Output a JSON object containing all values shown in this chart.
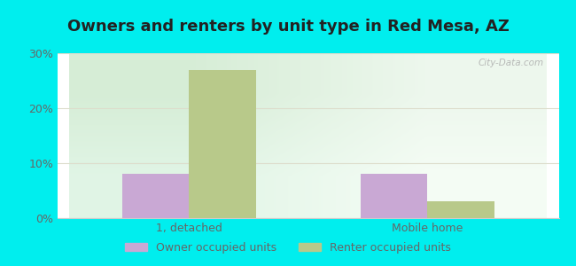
{
  "title": "Owners and renters by unit type in Red Mesa, AZ",
  "categories": [
    "1, detached",
    "Mobile home"
  ],
  "owner_values": [
    8.0,
    8.0
  ],
  "renter_values": [
    27.0,
    3.0
  ],
  "owner_color": "#c9a8d4",
  "renter_color": "#b8c98a",
  "ylim": [
    0,
    30
  ],
  "yticks": [
    0,
    10,
    20,
    30
  ],
  "yticklabels": [
    "0%",
    "10%",
    "20%",
    "30%"
  ],
  "outer_bg": "#00eeee",
  "bar_width": 0.28,
  "title_fontsize": 13,
  "tick_color": "#666666",
  "legend_labels": [
    "Owner occupied units",
    "Renter occupied units"
  ],
  "watermark": "City-Data.com"
}
